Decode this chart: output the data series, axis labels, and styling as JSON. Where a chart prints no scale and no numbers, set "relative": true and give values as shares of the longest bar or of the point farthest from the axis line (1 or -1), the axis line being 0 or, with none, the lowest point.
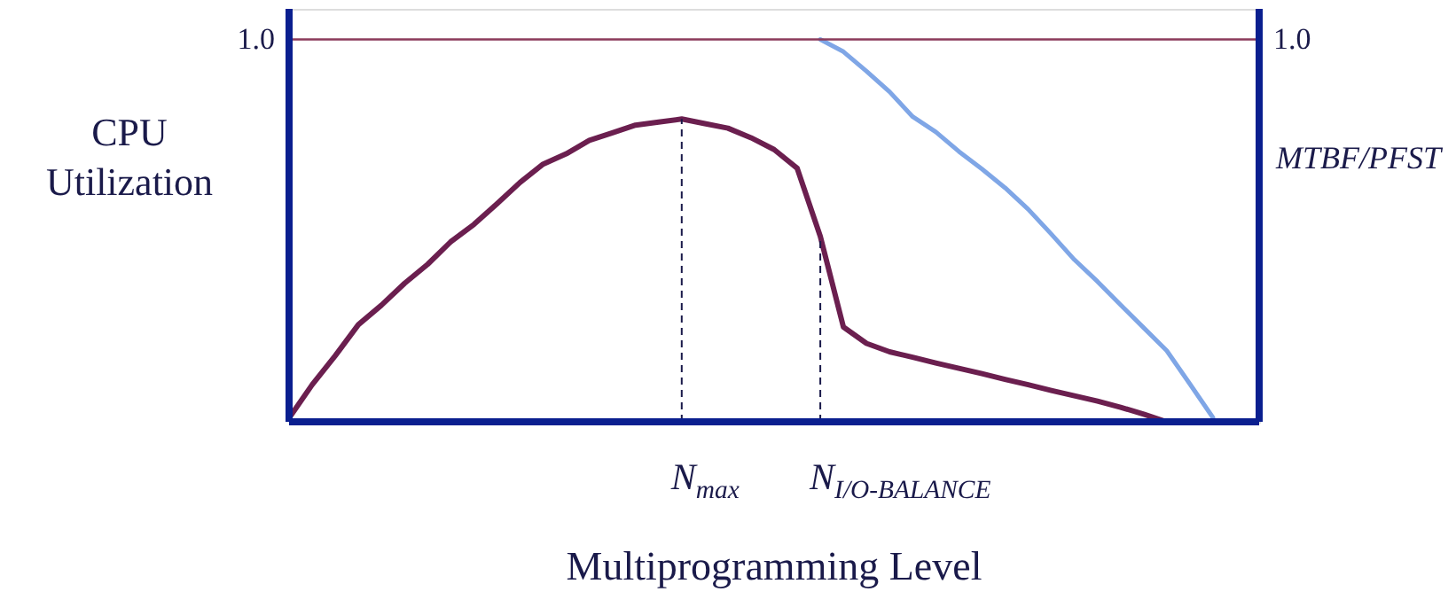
{
  "chart_data": {
    "type": "line",
    "relative": true,
    "marker": "none",
    "line_style": "solid",
    "xlabel": "Multiprogramming Level",
    "ylabel": "CPU Utilization",
    "y2label": "MTBF/PFST",
    "categories": [
      null,
      null,
      null,
      null,
      null,
      null,
      null,
      null,
      null,
      null,
      null,
      null,
      null,
      null,
      null,
      null,
      null,
      null,
      null,
      null,
      null,
      null,
      null,
      null,
      null,
      null,
      null,
      null,
      null,
      null,
      null,
      null,
      null,
      null,
      null,
      null,
      null,
      null,
      null,
      null,
      null,
      null,
      null
    ],
    "series": [
      {
        "color": "#6b1f4f",
        "values": [
          0.01,
          0.097,
          0.173,
          0.254,
          0.305,
          0.362,
          0.412,
          0.471,
          0.516,
          0.57,
          0.626,
          0.674,
          0.701,
          0.736,
          0.756,
          0.776,
          0.784,
          0.792,
          0.78,
          0.768,
          0.743,
          0.712,
          0.663,
          0.485,
          0.248,
          0.205,
          0.183,
          0.169,
          0.154,
          0.14,
          0.126,
          0.111,
          0.097,
          0.082,
          0.068,
          0.054,
          0.038,
          0.02,
          0.0,
          null,
          null,
          null,
          null
        ]
      },
      {
        "color": "#7fa6e6",
        "values": [
          null,
          null,
          null,
          null,
          null,
          null,
          null,
          null,
          null,
          null,
          null,
          null,
          null,
          null,
          null,
          null,
          null,
          null,
          null,
          null,
          null,
          null,
          null,
          1.0,
          0.968,
          0.917,
          0.863,
          0.798,
          0.758,
          0.707,
          0.661,
          0.612,
          0.556,
          0.491,
          0.424,
          0.367,
          0.306,
          0.246,
          0.186,
          0.099,
          0.011,
          null,
          null
        ]
      }
    ],
    "ref_lines": [
      {
        "axis": "y",
        "value": 1.0,
        "label": "1.0",
        "color": "#8b3a5a",
        "line_style": "solid"
      }
    ],
    "annotations": [
      "N$_{max}$",
      "N$_{I/O-BALANCE}$"
    ]
  }
}
